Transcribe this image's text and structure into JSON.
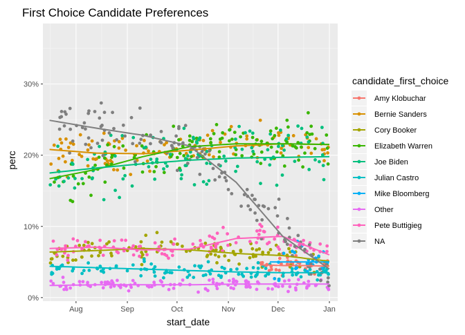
{
  "chart_data": {
    "type": "scatter",
    "title": "First Choice Candidate Preferences",
    "xlabel": "start_date",
    "ylabel": "perc",
    "x_type": "date",
    "xlim": [
      "2019-07-12",
      "2020-01-06"
    ],
    "ylim": [
      -0.5,
      38.5
    ],
    "y_ticks": [
      0,
      10,
      20,
      30
    ],
    "y_tick_labels": [
      "0%",
      "10%",
      "20%",
      "30%"
    ],
    "x_ticks": [
      "2019-08-01",
      "2019-09-01",
      "2019-10-01",
      "2019-11-01",
      "2019-12-01",
      "2020-01-01"
    ],
    "x_tick_labels": [
      "Aug",
      "Sep",
      "Oct",
      "Nov",
      "Dec",
      "Jan"
    ],
    "grid": true,
    "panel_background": "#EBEBEB",
    "legend": {
      "title": "candidate_first_choice",
      "position": "right"
    },
    "series": [
      {
        "name": "Amy Klobuchar",
        "color": "#F8766D",
        "start": "2019-11-20",
        "end": "2020-01-01",
        "trend": [
          4.6,
          4.5,
          4.5,
          4.4
        ],
        "spread": 1.0,
        "n": 30
      },
      {
        "name": "Bernie Sanders",
        "color": "#D89000",
        "start": "2019-07-16",
        "end": "2020-01-01",
        "trend": [
          20.8,
          20.3,
          20.2,
          20.7,
          21.3,
          21.6,
          21.5
        ],
        "spread": 2.0,
        "n": 120
      },
      {
        "name": "Cory Booker",
        "color": "#A3A500",
        "start": "2019-07-16",
        "end": "2020-01-01",
        "trend": [
          6.4,
          6.6,
          6.9,
          6.7,
          6.2,
          5.9,
          5.1
        ],
        "spread": 1.3,
        "n": 110
      },
      {
        "name": "Elizabeth Warren",
        "color": "#39B600",
        "start": "2019-07-16",
        "end": "2020-01-01",
        "trend": [
          16.7,
          18.0,
          19.8,
          21.2,
          21.6,
          21.6,
          21.5
        ],
        "spread": 2.4,
        "n": 120
      },
      {
        "name": "Joe Biden",
        "color": "#00BF7D",
        "start": "2019-07-16",
        "end": "2020-01-01",
        "trend": [
          17.5,
          18.2,
          18.8,
          19.3,
          19.6,
          19.7,
          19.8
        ],
        "spread": 2.8,
        "n": 120
      },
      {
        "name": "Julian Castro",
        "color": "#00BFC4",
        "start": "2019-07-16",
        "end": "2020-01-01",
        "trend": [
          4.4,
          4.2,
          4.0,
          3.8,
          3.6,
          3.5,
          3.5
        ],
        "spread": 0.9,
        "n": 110
      },
      {
        "name": "Mike Bloomberg",
        "color": "#00B0F6",
        "start": "2019-11-26",
        "end": "2020-01-01",
        "trend": [
          5.0,
          5.0,
          5.0
        ],
        "spread": 2.0,
        "n": 25
      },
      {
        "name": "Other",
        "color": "#E76BF3",
        "start": "2019-07-16",
        "end": "2020-01-01",
        "trend": [
          1.7,
          1.8,
          1.8,
          1.8,
          1.9,
          1.9,
          1.9
        ],
        "spread": 0.6,
        "n": 120
      },
      {
        "name": "Pete Buttigieg",
        "color": "#FF62BC",
        "start": "2019-07-16",
        "end": "2020-01-01",
        "trend": [
          6.9,
          7.1,
          6.7,
          6.8,
          8.3,
          8.6,
          6.0
        ],
        "spread": 1.1,
        "n": 110
      },
      {
        "name": "NA",
        "color": "#7F7F7F",
        "start": "2019-07-16",
        "end": "2020-01-01",
        "trend": [
          24.9,
          23.8,
          22.8,
          21.3,
          16.2,
          8.6,
          4.0
        ],
        "spread": 2.5,
        "n": 130
      }
    ]
  }
}
